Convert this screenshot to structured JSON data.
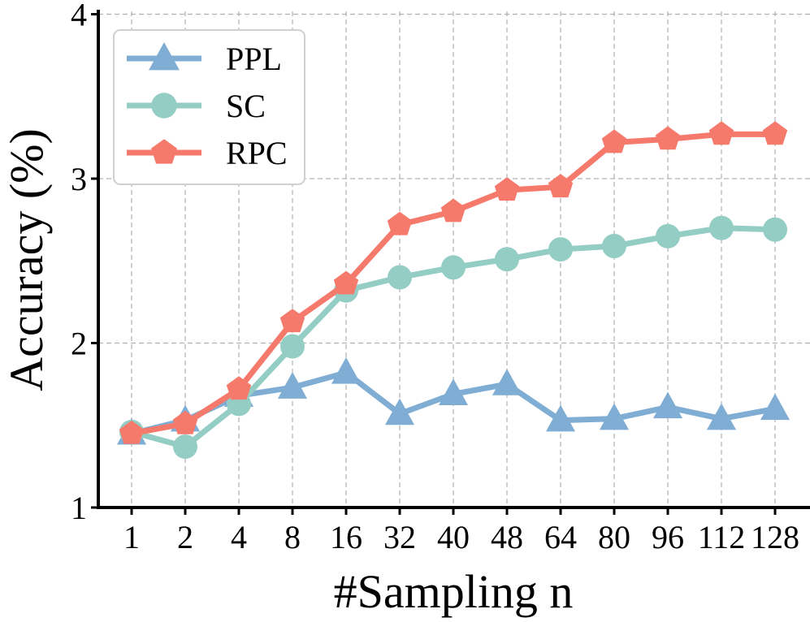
{
  "chart_data": {
    "type": "line",
    "title": "",
    "xlabel": "#Sampling n",
    "ylabel": "Accuracy (%)",
    "categories": [
      "1",
      "2",
      "4",
      "8",
      "16",
      "32",
      "40",
      "48",
      "64",
      "80",
      "96",
      "112",
      "128"
    ],
    "ylim": [
      1,
      4
    ],
    "yticks": [
      "1",
      "2",
      "3",
      "4"
    ],
    "grid": true,
    "legend_position": "top-left",
    "series": [
      {
        "name": "PPL",
        "marker": "triangle",
        "color": "#7fadd3",
        "values": [
          1.45,
          1.53,
          1.68,
          1.73,
          1.82,
          1.57,
          1.69,
          1.75,
          1.53,
          1.54,
          1.61,
          1.54,
          1.6
        ]
      },
      {
        "name": "SC",
        "marker": "circle",
        "color": "#93cdc4",
        "values": [
          1.46,
          1.37,
          1.63,
          1.98,
          2.32,
          2.4,
          2.46,
          2.51,
          2.57,
          2.59,
          2.65,
          2.7,
          2.69
        ]
      },
      {
        "name": "RPC",
        "marker": "pentagon",
        "color": "#f57a6c",
        "values": [
          1.45,
          1.51,
          1.72,
          2.13,
          2.36,
          2.72,
          2.8,
          2.93,
          2.95,
          3.22,
          3.24,
          3.27,
          3.27
        ]
      }
    ]
  }
}
